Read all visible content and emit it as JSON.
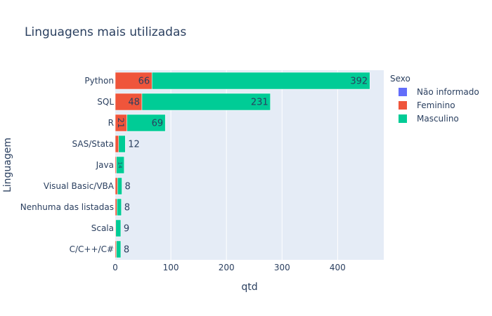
{
  "chart_data": {
    "type": "bar",
    "orientation": "horizontal",
    "barmode": "stack",
    "title": "Linguagens mais utilizadas",
    "xlabel": "qtd",
    "ylabel": "Linguagem",
    "xlim": [
      0,
      483
    ],
    "xticks": [
      0,
      100,
      200,
      300,
      400
    ],
    "grid": true,
    "legend_title": "Sexo",
    "legend_position": "right",
    "categories": [
      "Python",
      "SQL",
      "R",
      "SAS/Stata",
      "Java",
      "Visual Basic/VBA",
      "Nenhuma das listadas",
      "Scala",
      "C/C++/C#"
    ],
    "series": [
      {
        "name": "Não informado",
        "color": "#636efa",
        "values": [
          0,
          0,
          0,
          0,
          0,
          0,
          0,
          0,
          0
        ]
      },
      {
        "name": "Feminino",
        "color": "#ef553b",
        "values": [
          66,
          48,
          21,
          6,
          2,
          4,
          3,
          1,
          2
        ]
      },
      {
        "name": "Masculino",
        "color": "#00cc96",
        "values": [
          392,
          231,
          69,
          12,
          14,
          8,
          8,
          9,
          8
        ]
      }
    ],
    "visible_labels": [
      {
        "series": "Feminino",
        "category": "Python",
        "text": "66"
      },
      {
        "series": "Feminino",
        "category": "SQL",
        "text": "48"
      },
      {
        "series": "Feminino",
        "category": "R",
        "text": "21"
      },
      {
        "series": "Masculino",
        "category": "Python",
        "text": "392"
      },
      {
        "series": "Masculino",
        "category": "SQL",
        "text": "231"
      },
      {
        "series": "Masculino",
        "category": "R",
        "text": "69"
      },
      {
        "series": "Masculino",
        "category": "SAS/Stata",
        "text": "12"
      },
      {
        "series": "Masculino",
        "category": "Java",
        "text": "14"
      },
      {
        "series": "Masculino",
        "category": "Visual Basic/VBA",
        "text": "8"
      },
      {
        "series": "Masculino",
        "category": "Nenhuma das listadas",
        "text": "8"
      },
      {
        "series": "Masculino",
        "category": "Scala",
        "text": "9"
      },
      {
        "series": "Masculino",
        "category": "C/C++/C#",
        "text": "8"
      }
    ],
    "colors": {
      "plot_bg": "#e5ecf6",
      "grid": "#ffffff",
      "text": "#2a3f5f"
    }
  }
}
